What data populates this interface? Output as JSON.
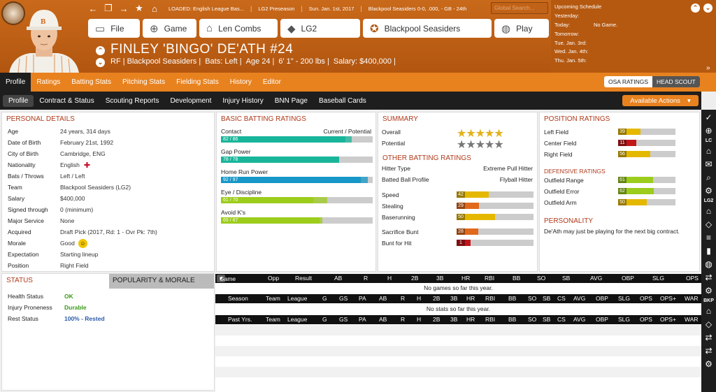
{
  "header": {
    "loaded": "LOADED: English League Bas...",
    "league_ctx": "LG2 Preseason",
    "date": "Sun. Jan. 1st, 2017",
    "team_rec": "Blackpool Seasiders  0-0, .000, - GB - 24th",
    "search_placeholder": "Global Search..."
  },
  "nav": [
    {
      "icon": "file-icon",
      "label": "File"
    },
    {
      "icon": "globe-icon",
      "label": "Game"
    },
    {
      "icon": "home-icon",
      "label": "Len Combs"
    },
    {
      "icon": "league-icon",
      "label": "LG2"
    },
    {
      "icon": "team-logo-icon",
      "label": "Blackpool Seasiders"
    },
    {
      "icon": "baseball-icon",
      "label": "Play"
    }
  ],
  "player": {
    "name": "FINLEY 'BINGO' DE'ATH  #24",
    "pos_team": "RF | Blackpool Seasiders |",
    "bats": "Bats: Left |",
    "age": "Age 24 |",
    "htwt": "6' 1\" - 200 lbs |",
    "salary": "Salary: $400,000 |"
  },
  "schedule": {
    "title": "Upcoming Schedule",
    "rows": [
      {
        "d": "Yesterday:",
        "v": ""
      },
      {
        "d": "Today:",
        "v": "No Game."
      },
      {
        "d": "Tomorrow:",
        "v": ""
      },
      {
        "d": "Tue. Jan. 3rd:",
        "v": ""
      },
      {
        "d": "Wed. Jan. 4th:",
        "v": ""
      },
      {
        "d": "Thu. Jan. 5th:",
        "v": ""
      }
    ]
  },
  "tabs": [
    "Profile",
    "Ratings",
    "Batting Stats",
    "Pitching Stats",
    "Fielding Stats",
    "History",
    "Editor"
  ],
  "osa": [
    "OSA RATINGS",
    "HEAD SCOUT"
  ],
  "subtabs": [
    "Profile",
    "Contract & Status",
    "Scouting Reports",
    "Development",
    "Injury History",
    "BNN Page",
    "Baseball Cards"
  ],
  "actions_label": "Available Actions",
  "personal": {
    "title": "PERSONAL DETAILS",
    "rows": [
      [
        "Age",
        "24 years, 314 days"
      ],
      [
        "Date of Birth",
        "February 21st, 1992"
      ],
      [
        "City of Birth",
        "Cambridge, ENG"
      ],
      [
        "Nationality",
        "English"
      ],
      [
        "Bats / Throws",
        "Left / Left"
      ],
      [
        "Team",
        "Blackpool Seasiders (LG2)"
      ],
      [
        "Salary",
        "$400,000"
      ],
      [
        "Signed through",
        "0 (minimum)"
      ],
      [
        "Major Service",
        "None"
      ],
      [
        "Acquired",
        "Draft Pick (2017, Rd: 1 - Ovr Pk: 7th)"
      ],
      [
        "Morale",
        "Good"
      ],
      [
        "Expectation",
        "Starting lineup"
      ],
      [
        "Position",
        "Right Field"
      ]
    ]
  },
  "status": {
    "title": "STATUS",
    "tab2": "POPULARITY & MORALE",
    "rows": [
      [
        "Health Status",
        "OK"
      ],
      [
        "Injury Proneness",
        "Durable"
      ],
      [
        "Rest Status",
        "100% - Rested"
      ]
    ]
  },
  "batting": {
    "title": "BASIC BATTING RATINGS",
    "hdr_r": "Current / Potential",
    "rows": [
      {
        "label": "Contact",
        "text": "82 / 86",
        "cur": 82,
        "pot": 86,
        "color": "#18b59a"
      },
      {
        "label": "Gap Power",
        "text": "78 / 78",
        "cur": 78,
        "pot": 78,
        "color": "#18b59a"
      },
      {
        "label": "Home Run Power",
        "text": "92 / 97",
        "cur": 92,
        "pot": 97,
        "color": "#1697c7"
      },
      {
        "label": "Eye / Discipline",
        "text": "61 / 70",
        "cur": 61,
        "pot": 70,
        "color": "#9ccc1c"
      },
      {
        "label": "Avoid K's",
        "text": "65 / 67",
        "cur": 65,
        "pot": 67,
        "color": "#9ccc1c"
      }
    ]
  },
  "summary": {
    "title": "SUMMARY",
    "overall_label": "Overall",
    "overall_stars": 5,
    "potential_label": "Potential",
    "potential_stars": 0
  },
  "other": {
    "title": "OTHER BATTING RATINGS",
    "hitter_type_label": "Hitter Type",
    "hitter_type": "Extreme Pull Hitter",
    "bbp_label": "Batted Ball Profile",
    "bbp": "Flyball Hitter",
    "rows": [
      {
        "label": "Speed",
        "v": 42,
        "color": "#e5b800"
      },
      {
        "label": "Stealing",
        "v": 29,
        "color": "#e0691c"
      },
      {
        "label": "Baserunning",
        "v": 50,
        "color": "#e5b800"
      },
      {
        "label": "Sacrifice Bunt",
        "v": 28,
        "color": "#e0691c"
      },
      {
        "label": "Bunt for Hit",
        "v": 1,
        "color": "#c0161a"
      }
    ]
  },
  "position": {
    "title": "POSITION RATINGS",
    "rows": [
      {
        "label": "Left Field",
        "v": 39,
        "color": "#e5b800"
      },
      {
        "label": "Center Field",
        "v": 11,
        "color": "#c0161a"
      },
      {
        "label": "Right Field",
        "v": 56,
        "color": "#e5b800"
      }
    ],
    "def_title": "DEFENSIVE RATINGS",
    "def": [
      {
        "label": "Outfield Range",
        "v": 61,
        "color": "#9ccc1c"
      },
      {
        "label": "Outfield Error",
        "v": 62,
        "color": "#9ccc1c"
      },
      {
        "label": "Outfield Arm",
        "v": 50,
        "color": "#e5b800"
      }
    ]
  },
  "personality": {
    "title": "PERSONALITY",
    "text": "De'Ath may just be playing for the next big contract."
  },
  "gamelog": {
    "select": "Game Log",
    "cols": [
      "Opp",
      "Result",
      "AB",
      "R",
      "H",
      "2B",
      "3B",
      "HR",
      "RBI",
      "BB",
      "SO",
      "SB",
      "AVG",
      "OBP",
      "SLG",
      "OPS"
    ],
    "empty": "No games so far this year."
  },
  "season": {
    "cols": [
      "Season",
      "Team",
      "League",
      "G",
      "GS",
      "PA",
      "AB",
      "R",
      "H",
      "2B",
      "3B",
      "HR",
      "RBI",
      "BB",
      "SO",
      "SB",
      "CS",
      "AVG",
      "OBP",
      "SLG",
      "OPS",
      "OPS+",
      "WAR"
    ],
    "empty": "No stats so far this year."
  },
  "past": {
    "cols": [
      "Past Yrs.",
      "Team",
      "League",
      "G",
      "GS",
      "PA",
      "AB",
      "R",
      "H",
      "2B",
      "3B",
      "HR",
      "RBI",
      "BB",
      "SO",
      "SB",
      "CS",
      "AVG",
      "OBP",
      "SLG",
      "OPS",
      "OPS+",
      "WAR"
    ]
  },
  "rail": [
    "check-circle-icon",
    "globe-icon",
    "LC",
    "home-icon",
    "mail-icon",
    "search-icon",
    "gear-icon",
    "LG2",
    "home-icon",
    "diamond-icon",
    "list-icon",
    "bar-chart-icon",
    "baseball-icon",
    "swap-icon",
    "gear-icon",
    "BKP",
    "home-icon",
    "diamond-icon",
    "swap-icon",
    "swap-icon",
    "gear-icon"
  ]
}
